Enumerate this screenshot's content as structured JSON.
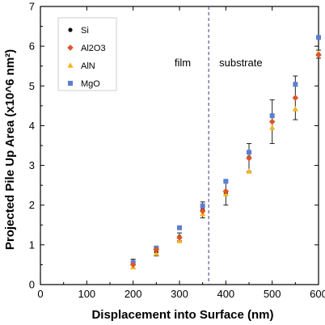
{
  "chart_data": {
    "type": "scatter",
    "title": "",
    "xlabel": "Displacement into Surface (nm)",
    "ylabel": "Projected Pile Up Area (x10^6 nm²)",
    "xlim": [
      0,
      600
    ],
    "ylim": [
      0,
      7
    ],
    "x_ticks": [
      "0",
      "100",
      "200",
      "300",
      "400",
      "500",
      "600"
    ],
    "y_ticks": [
      "0",
      "1",
      "2",
      "3",
      "4",
      "5",
      "6",
      "7"
    ],
    "grid": false,
    "legend_position": "top-left",
    "divider": {
      "x": 363,
      "left_label": "film",
      "right_label": "substrate"
    },
    "x": [
      200,
      250,
      300,
      350,
      400,
      450,
      500,
      550,
      600
    ],
    "series": [
      {
        "name": "Si",
        "color": "#111111",
        "marker": "circle",
        "values": [
          0.52,
          0.82,
          1.2,
          1.88,
          2.3,
          3.2,
          4.1,
          4.7,
          5.8
        ],
        "errors": [
          0.12,
          0.1,
          0.1,
          0.2,
          0.3,
          0.35,
          0.55,
          0.55,
          0.1
        ]
      },
      {
        "name": "Al2O3",
        "color": "#e0542a",
        "marker": "diamond",
        "values": [
          0.5,
          0.88,
          1.18,
          1.85,
          2.35,
          3.18,
          4.1,
          4.7,
          5.78
        ],
        "errors": [
          0,
          0,
          0,
          0,
          0,
          0,
          0,
          0,
          0
        ]
      },
      {
        "name": "AlN",
        "color": "#f7b320",
        "marker": "triangle",
        "values": [
          0.44,
          0.78,
          1.1,
          1.78,
          2.28,
          2.85,
          3.95,
          4.42,
          5.82
        ],
        "errors": [
          0,
          0,
          0,
          0,
          0,
          0,
          0,
          0,
          0
        ]
      },
      {
        "name": "MgO",
        "color": "#5b7fd0",
        "marker": "square",
        "values": [
          0.56,
          0.92,
          1.43,
          1.98,
          2.6,
          3.33,
          4.25,
          5.04,
          6.22
        ],
        "errors": [
          0,
          0,
          0,
          0,
          0,
          0,
          0,
          0,
          0
        ]
      }
    ]
  }
}
